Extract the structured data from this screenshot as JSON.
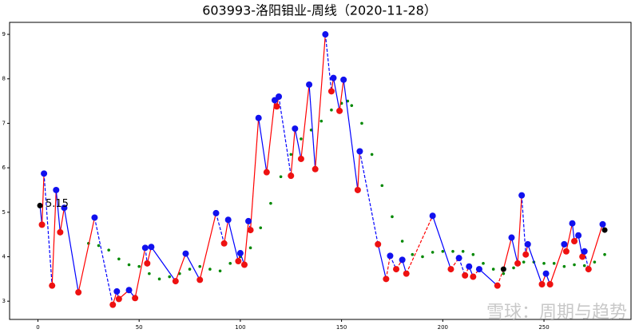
{
  "chart_data": {
    "type": "line",
    "title": "603993-洛阳钼业-周线（2020-11-28）",
    "watermark": "雪球：周期与趋势",
    "xlim": [
      -14,
      293
    ],
    "ylim": [
      2.59,
      9.27
    ],
    "xticks": [
      0,
      50,
      100,
      150,
      200,
      250
    ],
    "yticks": [
      3,
      4,
      5,
      6,
      7,
      8,
      9
    ],
    "rise_color": "#ff0000",
    "fall_color": "#0000ff",
    "series": [
      {
        "x": [
          1,
          2,
          3,
          7,
          9,
          11,
          13,
          20,
          28,
          37,
          39,
          40,
          45,
          48,
          53,
          54,
          56,
          68,
          73,
          80,
          88,
          92,
          94,
          99,
          100,
          102,
          104,
          105,
          109,
          113,
          117,
          118,
          119,
          125,
          127,
          130,
          134,
          137,
          142,
          145,
          146,
          149,
          151,
          158,
          159,
          168,
          172,
          174,
          177,
          180,
          182,
          195,
          204,
          208,
          211,
          213,
          215,
          218,
          227,
          230,
          234,
          237,
          239,
          241,
          242,
          249,
          251,
          253,
          260,
          261,
          264,
          265,
          267,
          269,
          270,
          272,
          279,
          280
        ],
        "values": [
          5.15,
          4.72,
          5.87,
          3.35,
          5.5,
          4.55,
          5.1,
          3.2,
          4.88,
          2.92,
          3.22,
          3.05,
          3.25,
          3.07,
          4.2,
          3.85,
          4.22,
          3.45,
          4.07,
          3.48,
          4.98,
          4.3,
          4.83,
          3.9,
          4.08,
          3.82,
          4.8,
          4.6,
          7.12,
          5.9,
          7.52,
          7.38,
          7.6,
          5.82,
          6.88,
          6.2,
          7.87,
          5.97,
          9.0,
          7.72,
          8.02,
          7.28,
          7.98,
          5.5,
          6.37,
          4.28,
          3.5,
          4.02,
          3.72,
          3.93,
          3.62,
          4.92,
          3.72,
          3.97,
          3.58,
          3.78,
          3.55,
          3.72,
          3.35,
          3.72,
          4.43,
          3.85,
          5.38,
          4.05,
          4.28,
          3.38,
          3.62,
          3.38,
          4.28,
          4.12,
          4.75,
          4.35,
          4.48,
          4.0,
          4.12,
          3.72,
          4.73,
          4.6
        ],
        "point_colors": [
          "#000000",
          "#ee1111",
          "#1111ee",
          "#ee1111",
          "#1111ee",
          "#ee1111",
          "#1111ee",
          "#ee1111",
          "#1111ee",
          "#ee1111",
          "#1111ee",
          "#ee1111",
          "#1111ee",
          "#ee1111",
          "#1111ee",
          "#ee1111",
          "#1111ee",
          "#ee1111",
          "#1111ee",
          "#ee1111",
          "#1111ee",
          "#ee1111",
          "#1111ee",
          "#ee1111",
          "#1111ee",
          "#ee1111",
          "#1111ee",
          "#ee1111",
          "#1111ee",
          "#ee1111",
          "#1111ee",
          "#ee1111",
          "#1111ee",
          "#ee1111",
          "#1111ee",
          "#ee1111",
          "#1111ee",
          "#ee1111",
          "#1111ee",
          "#ee1111",
          "#1111ee",
          "#ee1111",
          "#1111ee",
          "#ee1111",
          "#1111ee",
          "#ee1111",
          "#ee1111",
          "#1111ee",
          "#ee1111",
          "#1111ee",
          "#ee1111",
          "#1111ee",
          "#ee1111",
          "#1111ee",
          "#ee1111",
          "#1111ee",
          "#ee1111",
          "#1111ee",
          "#ee1111",
          "#000000",
          "#1111ee",
          "#ee1111",
          "#1111ee",
          "#ee1111",
          "#1111ee",
          "#ee1111",
          "#1111ee",
          "#ee1111",
          "#1111ee",
          "#ee1111",
          "#1111ee",
          "#ee1111",
          "#1111ee",
          "#ee1111",
          "#1111ee",
          "#ee1111",
          "#1111ee",
          "#000000"
        ]
      },
      {
        "color": "#008800",
        "x": [
          25,
          30,
          35,
          40,
          45,
          50,
          55,
          60,
          65,
          70,
          75,
          80,
          85,
          90,
          95,
          100,
          105,
          110,
          115,
          120,
          125,
          130,
          135,
          140,
          145,
          150,
          153,
          155,
          160,
          165,
          170,
          175,
          180,
          185,
          190,
          195,
          200,
          205,
          210,
          215,
          220,
          225,
          230,
          235,
          240,
          245,
          250,
          255,
          260,
          265,
          270,
          275,
          280
        ],
        "values": [
          4.3,
          4.25,
          4.15,
          3.95,
          3.82,
          3.78,
          3.62,
          3.5,
          3.55,
          3.62,
          3.72,
          3.78,
          3.72,
          3.68,
          3.85,
          4.0,
          4.2,
          4.65,
          5.2,
          5.8,
          6.3,
          6.65,
          6.85,
          7.05,
          7.3,
          7.45,
          7.5,
          7.4,
          7.0,
          6.3,
          5.6,
          4.9,
          4.35,
          4.05,
          4.0,
          4.1,
          4.12,
          4.12,
          4.12,
          4.05,
          3.85,
          3.72,
          3.62,
          3.75,
          3.88,
          3.88,
          3.85,
          3.85,
          3.78,
          3.82,
          3.8,
          3.88,
          4.05
        ]
      }
    ]
  }
}
